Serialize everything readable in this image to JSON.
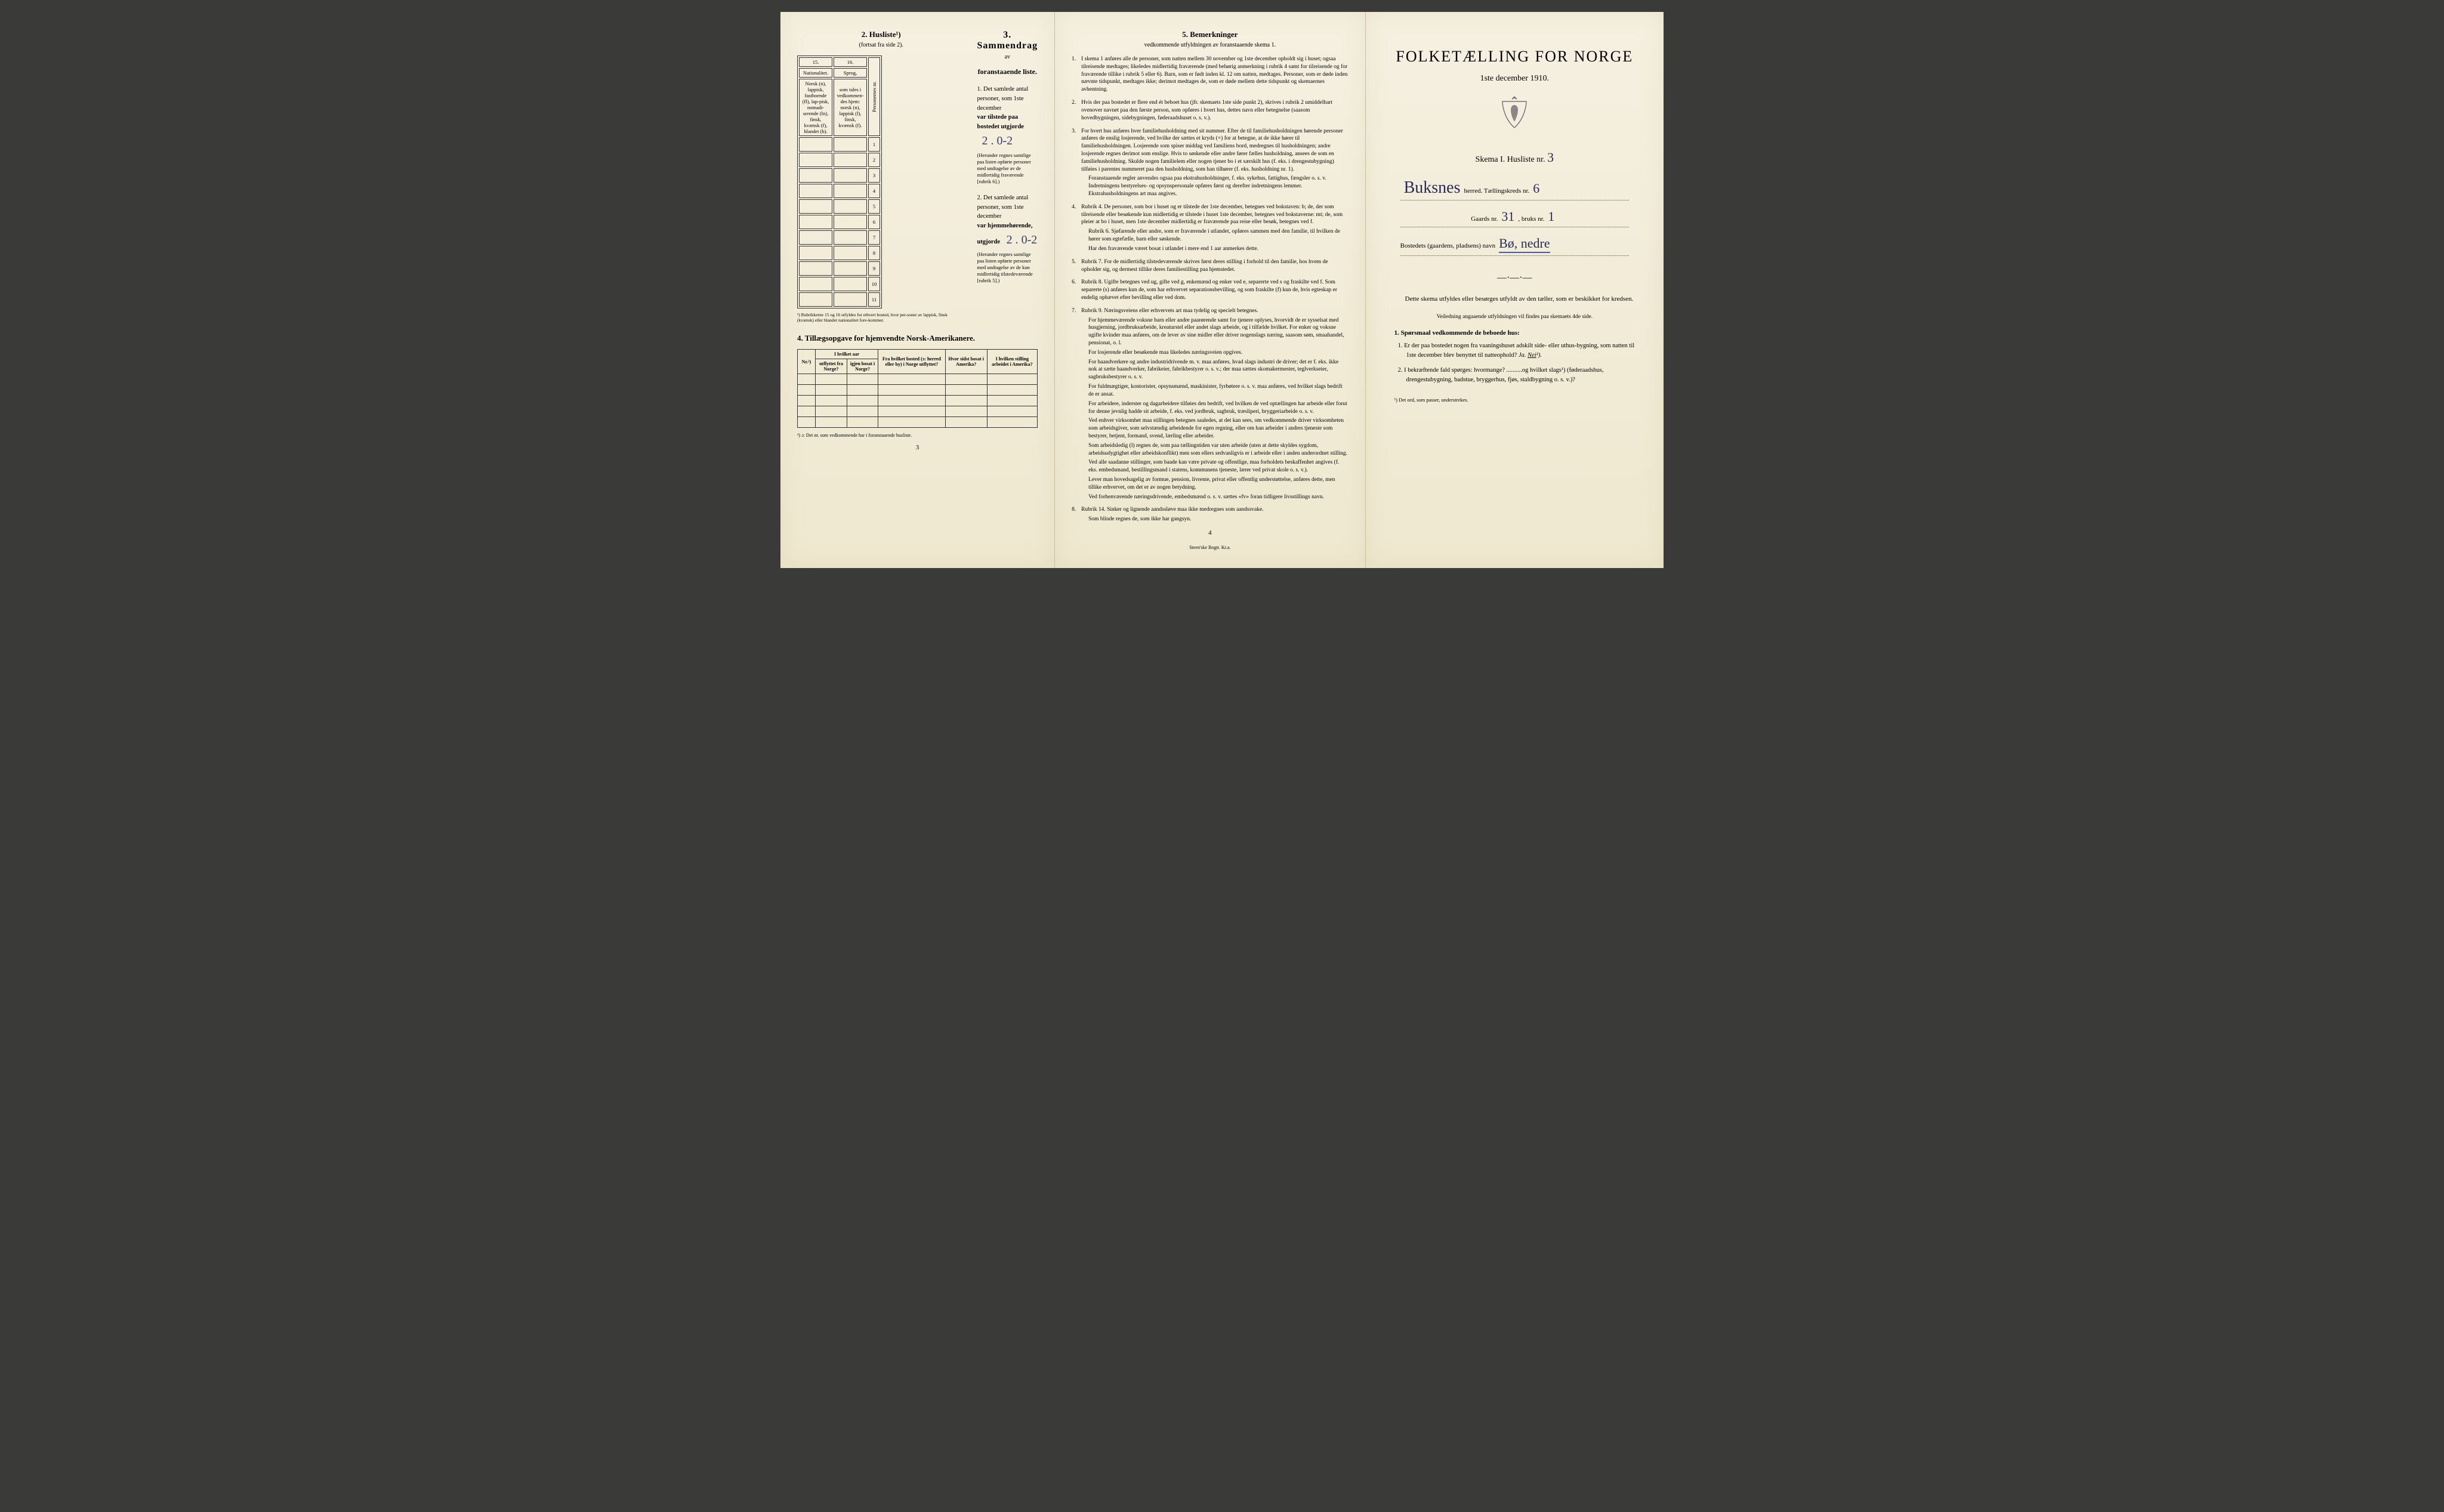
{
  "page1": {
    "husliste": {
      "title": "2. Husliste¹)",
      "subtitle": "(fortsat fra side 2).",
      "cols": {
        "c15": "15.",
        "c16": "16.",
        "nat": "Nationalitet.",
        "sprog": "Sprog,",
        "nat_note": "Norsk (n), lappisk, fastboende (fl), lap-pisk, nomadi-serende (ln), finsk, kvænsk (f), blandet (b).",
        "sprog_note": "som tales i vedkommen-des hjem: norsk (n), lappisk (l), finsk, kvænsk (f).",
        "pers": "Personernes nr."
      },
      "rows": [
        "1",
        "2",
        "3",
        "4",
        "5",
        "6",
        "7",
        "8",
        "9",
        "10",
        "11"
      ],
      "footnote": "¹) Rubrikkerne 15 og 16 utfyldes for ethvert bosted, hvor per-soner av lappisk, finsk (kvænsk) eller blandet nationalitet fore-kommer."
    },
    "sammendrag": {
      "title": "3. Sammendrag",
      "subtitle_av": "av",
      "subtitle2": "foranstaaende liste.",
      "item1_lead": "1. Det samlede antal personer, som 1ste december",
      "item1_var": "var tilstede paa bostedet utgjorde",
      "item1_val": "2 . 0-2",
      "item1_note": "(Herunder regnes samtlige paa listen opførte personer med undtagelse av de midlertidig fraværende [rubrik 6].)",
      "item2_lead": "2. Det samlede antal personer, som 1ste december",
      "item2_var": "var hjemmehørende, utgjorde",
      "item2_val": "2 . 0-2",
      "item2_note": "(Herunder regnes samtlige paa listen opførte personer med undtagelse av de kun midlertidig tilstedeværende [rubrik 5].)"
    },
    "section4": {
      "title": "4. Tillægsopgave for hjemvendte Norsk-Amerikanere.",
      "headers": {
        "nr": "Nr.²)",
        "aar": "I hvilket aar",
        "utfl": "utflyttet fra Norge?",
        "igjen": "igjen bosat i Norge?",
        "bosted": "Fra hvilket bosted (ɔ: herred eller by) i Norge utflyttet?",
        "sidst": "Hvor sidst bosat i Amerika?",
        "stilling": "I hvilken stilling arbeidet i Amerika?"
      },
      "footnote": "²) ɔ: Det nr. som vedkommende har i foranstaaende husliste.",
      "pagenum": "3"
    }
  },
  "page2": {
    "title": "5. Bemerkninger",
    "subtitle": "vedkommende utfyldningen av foranstaaende skema 1.",
    "items": [
      {
        "n": "1.",
        "t": "I skema 1 anføres alle de personer, som natten mellem 30 november og 1ste december opholdt sig i huset; ogsaa tilreisende medtages; likeledes midlertidig fraværende (med behørig anmerkning i rubrik 4 samt for tilreisende og for fraværende tillike i rubrik 5 eller 6). Barn, som er født inden kl. 12 om natten, medtages. Personer, som er døde inden nævnte tidspunkt, medtages ikke; derimot medtages de, som er døde mellem dette tidspunkt og skemaernes avhentning."
      },
      {
        "n": "2.",
        "t": "Hvis der paa bostedet er flere end ét beboet hus (jfr. skemaets 1ste side punkt 2), skrives i rubrik 2 umiddelbart ovenover navnet paa den første person, som opføres i hvert hus, dettes navn eller betegnelse (saasom hovedbygningen, sidebygningen, føderaadshuset o. s. v.)."
      },
      {
        "n": "3.",
        "t": "For hvert hus anføres hver familiehusholdning med sit nummer. Efter de til familiehusholdningen hørende personer anføres de enslig losjerende, ved hvilke der sættes et kryds (×) for at betegne, at de ikke hører til familiehusholdningen. Losjerende som spiser middag ved familiens bord, medregnes til husholdningen; andre losjerende regnes derimot som enslige. Hvis to søskende eller andre fører fælles husholdning, ansees de som en familiehusholdning. Skulde nogen familielem eller nogen tjener bo i et særskilt hus (f. eks. i drengestubygning) tilføies i parentes nummeret paa den husholdning, som han tilhører (f. eks. husholdning nr. 1).",
        "indent": [
          "Foranstaaende regler anvendes ogsaa paa ekstrahusholdninger, f. eks. sykehus, fattighus, fængsler o. s. v. Indretningens bestyrelses- og opsynspersonale opføres først og derefter indretningens lemmer. Ekstrahusholdningens art maa angives."
        ]
      },
      {
        "n": "4.",
        "t": "Rubrik 4. De personer, som bor i huset og er tilstede der 1ste december, betegnes ved bokstaven: b; de, der som tilreisende eller besøkende kun midlertidig er tilstede i huset 1ste december, betegnes ved bokstaverne: mt; de, som pleier at bo i huset, men 1ste december midlertidig er fraværende paa reise eller besøk, betegnes ved f.",
        "indent": [
          "Rubrik 6. Sjøfarende eller andre, som er fraværende i utlandet, opføres sammen med den familie, til hvilken de hører som egtefælle, barn eller søskende.",
          "Har den fraværende været bosat i utlandet i mere end 1 aar anmerkes dette."
        ]
      },
      {
        "n": "5.",
        "t": "Rubrik 7. For de midlertidig tilstedeværende skrives først deres stilling i forhold til den familie, hos hvem de opholder sig, og dermest tillike deres familiestilling paa hjemstedet."
      },
      {
        "n": "6.",
        "t": "Rubrik 8. Ugifte betegnes ved ug, gifte ved g, enkemænd og enker ved e, separerte ved s og fraskilte ved f. Som separerte (s) anføres kun de, som har erhvervet separationsbevilling, og som fraskilte (f) kun de, hvis egteskap er endelig ophævet efter bevilling eller ved dom."
      },
      {
        "n": "7.",
        "t": "Rubrik 9. Næringsveiens eller erhvervets art maa tydelig og specielt betegnes.",
        "indent": [
          "For hjemmeværende voksne barn eller andre paarørende samt for tjenere oplyses, hvorvidt de er sysselsat med husgjerning, jordbruksarbeide, kreaturstel eller andet slags arbeide, og i tilfælde hvilket. For enker og voksne ugifte kvinder maa anføres, om de lever av sine midler eller driver nogenslags næring, saasom søm, smaahandel, pensionat, o. l.",
          "For losjerende eller besøkende maa likeledes næringsveien opgives.",
          "For haandverkere og andre industridrivende m. v. maa anføres, hvad slags industri de driver; det er f. eks. ikke nok at sætte haandverker, fabrikeier, fabrikbestyrer o. s. v.; der maa sættes skomakermester, teglverkseier, sagbruksbestyrer o. s. v.",
          "For fuldmægtiger, kontorister, opsynsmænd, maskinister, fyrbøtere o. s. v. maa anføres, ved hvilket slags bedrift de er ansat.",
          "For arbeidere, inderster og dagarbeidere tilføies den bedrift, ved hvilken de ved optællingen har arbeide eller forut for denne jevnlig hadde sit arbeide, f. eks. ved jordbruk, sagbruk, træsliperi, bryggeriarbeide o. s. v.",
          "Ved enhver virksomhet maa stillingen betegnes saaledes, at det kan sees, om vedkommende driver virksomheten som arbeidsgiver, som selvstændig arbeidende for egen regning, eller om han arbeider i andres tjeneste som bestyrer, betjent, formand, svend, lærling eller arbeider.",
          "Som arbeidsledig (l) regnes de, som paa tællingstiden var uten arbeide (uten at dette skyldes sygdom, arbeidsudygtighet eller arbeidskonflikt) men som ellers sedvanligvis er i arbeide eller i anden underordnet stilling.",
          "Ved alle saadanne stillinger, som baade kan være private og offentlige, maa forholdets beskaffenhet angives (f. eks. embedsmand, bestillingsmand i statens, kommunens tjeneste, lærer ved privat skole o. s. v.).",
          "Lever man hovedsagelig av formue, pension, livrente, privat eller offentlig understøttelse, anføres dette, men tillike erhvervet, om det er av nogen betydning.",
          "Ved forhenværende næringsdrivende, embedsmænd o. s. v. sættes «fv» foran tidligere livsstillings navn."
        ]
      },
      {
        "n": "8.",
        "t": "Rubrik 14. Sinker og lignende aandssløve maa ikke medregnes som aandssvake.",
        "indent": [
          "Som blinde regnes de, som ikke har gangsyn."
        ]
      }
    ],
    "pagenum": "4",
    "printer": "Steen'ske Bogtr. Kr.a."
  },
  "page3": {
    "big_title": "FOLKETÆLLING FOR NORGE",
    "date": "1ste december 1910.",
    "skema": "Skema I. Husliste nr.",
    "skema_val": "3",
    "line1_hand": "Buksnes",
    "line1_txt": "herred. Tællingskreds nr.",
    "line1_val": "6",
    "line2_lead": "Gaards nr.",
    "line2_v1": "31",
    "line2_mid": ", bruks nr.",
    "line2_v2": "1",
    "line3_lead": "Bostedets (gaardens, pladsens) navn",
    "line3_hand": "Bø, nedre",
    "body1": "Dette skema utfyldes eller besørges utfyldt av den tæller, som er beskikket for kredsen.",
    "body2": "Veiledning angaaende utfyldningen vil findes paa skemaets 4de side.",
    "q_title": "1. Spørsmaal vedkommende de beboede hus:",
    "q1": "1. Er der paa bostedet nogen fra vaaningshuset adskilt side- eller uthus-bygning, som natten til 1ste december blev benyttet til natteophold?",
    "q1_ans": "Ja. Nei²).",
    "q2": "2. I bekræftende fald spørges: hvormange? ..........og hvilket slags¹) (føderaadshus, drengestubygning, badstue, bryggerhus, fjøs, staldbygning o. s. v.)?",
    "foot": "¹) Det ord, som passer, understrekes."
  }
}
